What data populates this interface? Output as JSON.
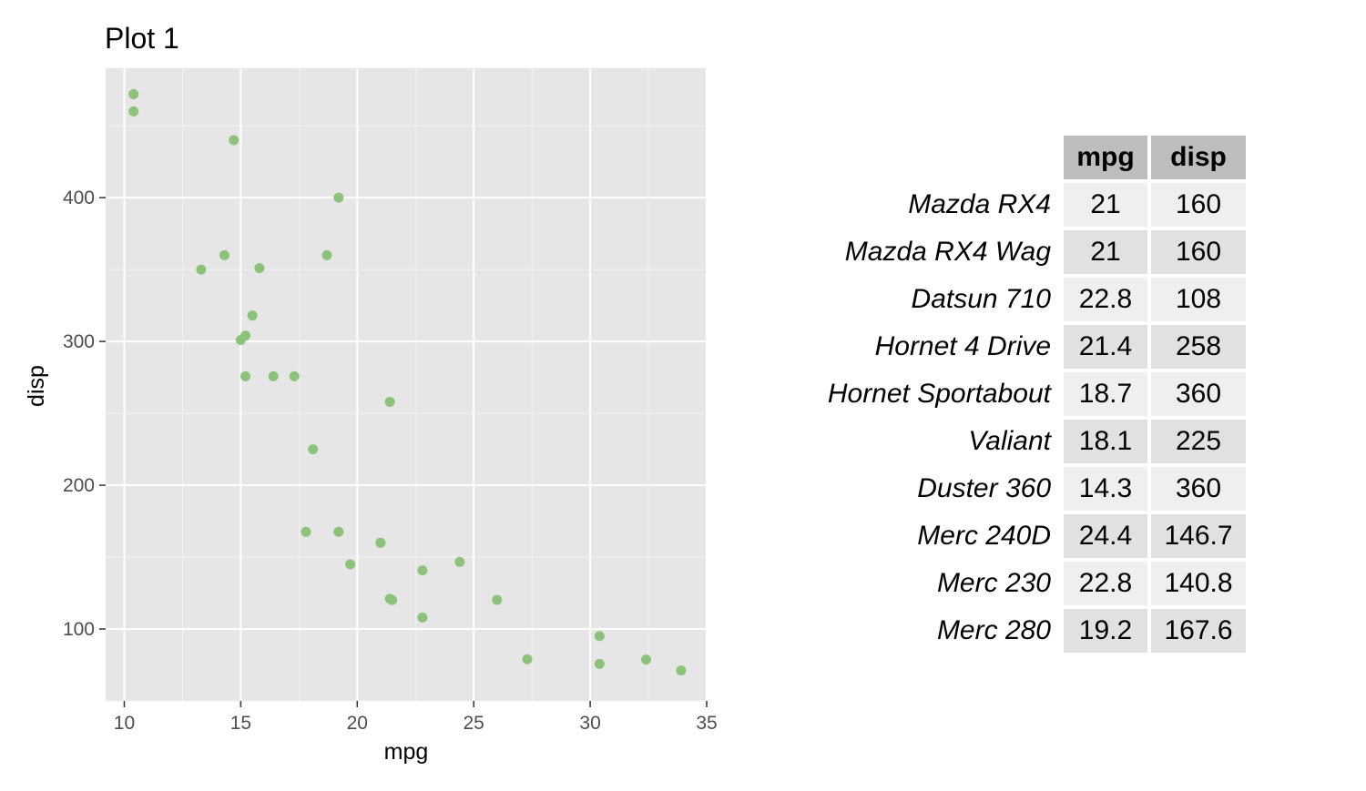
{
  "chart_data": {
    "type": "scatter",
    "title": "Plot 1",
    "xlabel": "mpg",
    "ylabel": "disp",
    "xlim": [
      9.2,
      35
    ],
    "ylim": [
      50,
      490
    ],
    "xticks": [
      10,
      15,
      20,
      25,
      30,
      35
    ],
    "yticks": [
      100,
      200,
      300,
      400
    ],
    "grid": true,
    "point_color": "#8dc27a",
    "panel_background": "#e6e6e6",
    "points": [
      {
        "x": 21,
        "y": 160
      },
      {
        "x": 21,
        "y": 160
      },
      {
        "x": 22.8,
        "y": 108
      },
      {
        "x": 21.4,
        "y": 258
      },
      {
        "x": 18.7,
        "y": 360
      },
      {
        "x": 18.1,
        "y": 225
      },
      {
        "x": 14.3,
        "y": 360
      },
      {
        "x": 24.4,
        "y": 146.7
      },
      {
        "x": 22.8,
        "y": 140.8
      },
      {
        "x": 19.2,
        "y": 167.6
      },
      {
        "x": 17.8,
        "y": 167.6
      },
      {
        "x": 16.4,
        "y": 275.8
      },
      {
        "x": 17.3,
        "y": 275.8
      },
      {
        "x": 15.2,
        "y": 275.8
      },
      {
        "x": 10.4,
        "y": 472
      },
      {
        "x": 10.4,
        "y": 460
      },
      {
        "x": 14.7,
        "y": 440
      },
      {
        "x": 32.4,
        "y": 78.7
      },
      {
        "x": 30.4,
        "y": 75.7
      },
      {
        "x": 33.9,
        "y": 71.1
      },
      {
        "x": 21.5,
        "y": 120.1
      },
      {
        "x": 15.5,
        "y": 318
      },
      {
        "x": 15.2,
        "y": 304
      },
      {
        "x": 13.3,
        "y": 350
      },
      {
        "x": 19.2,
        "y": 400
      },
      {
        "x": 27.3,
        "y": 79
      },
      {
        "x": 26,
        "y": 120.3
      },
      {
        "x": 30.4,
        "y": 95.1
      },
      {
        "x": 15.8,
        "y": 351
      },
      {
        "x": 19.7,
        "y": 145
      },
      {
        "x": 15,
        "y": 301
      },
      {
        "x": 21.4,
        "y": 121
      }
    ]
  },
  "table": {
    "headers": [
      "mpg",
      "disp"
    ],
    "rows": [
      {
        "name": "Mazda RX4",
        "mpg": "21",
        "disp": "160"
      },
      {
        "name": "Mazda RX4 Wag",
        "mpg": "21",
        "disp": "160"
      },
      {
        "name": "Datsun 710",
        "mpg": "22.8",
        "disp": "108"
      },
      {
        "name": "Hornet 4 Drive",
        "mpg": "21.4",
        "disp": "258"
      },
      {
        "name": "Hornet Sportabout",
        "mpg": "18.7",
        "disp": "360"
      },
      {
        "name": "Valiant",
        "mpg": "18.1",
        "disp": "225"
      },
      {
        "name": "Duster 360",
        "mpg": "14.3",
        "disp": "360"
      },
      {
        "name": "Merc 240D",
        "mpg": "24.4",
        "disp": "146.7"
      },
      {
        "name": "Merc 230",
        "mpg": "22.8",
        "disp": "140.8"
      },
      {
        "name": "Merc 280",
        "mpg": "19.2",
        "disp": "167.6"
      }
    ]
  }
}
